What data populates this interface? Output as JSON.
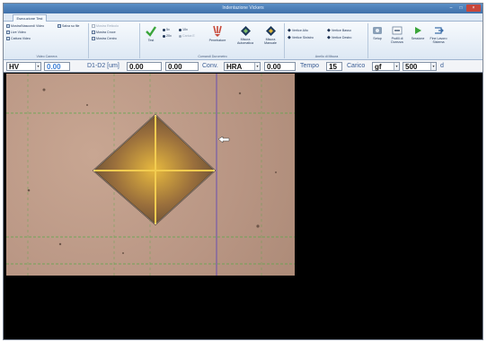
{
  "window": {
    "title": "Indentazione Vickers"
  },
  "tabs": [
    {
      "label": "Esecuzione Test",
      "active": true
    }
  ],
  "ribbon": {
    "video": {
      "label": "Video Camera",
      "items": [
        "Mostra/Nascondi Video",
        "Live Video",
        "Cattura Video",
        "Salva su file"
      ]
    },
    "display": {
      "items": [
        "Mostra Reticolo",
        "Mostra Croce",
        "Mostra Centro"
      ]
    },
    "commands": {
      "label": "Comandi Durometro",
      "test_label": "Test",
      "objectives": [
        "5x",
        "10x",
        "20x",
        "Carica E"
      ],
      "penetrator_label": "Penetratore",
      "auto_label": "Misura Automatica",
      "manual_label": "Misura Manuale"
    },
    "vertices": {
      "label": "Anello di Misura",
      "items": [
        "Vertice Alto",
        "Vertice Sinistro",
        "Vertice Basso",
        "Vertice Destro"
      ]
    },
    "tools": {
      "items": [
        "Setup",
        "Profili di Durezza",
        "Sessione",
        "Fine Lavoro Sistema"
      ]
    }
  },
  "measure_bar": {
    "scale": "HV",
    "value": "0.00",
    "d_label": "D1-D2 [um]",
    "d1": "0.00",
    "d2": "0.00",
    "conv_label": "Conv.",
    "conv_scale": "HRA",
    "conv_value": "0.00",
    "time_label": "Tempo",
    "time_value": "15",
    "load_label": "Carico",
    "load_unit": "gf",
    "load_value": "500",
    "tail": "d"
  },
  "colors": {
    "accent_blue": "#3d7fd6",
    "title_bar": "#4a7fba",
    "grid": "#5aa84a",
    "cursor_line": "#6a4fb0"
  },
  "icons": [
    "check-icon",
    "penetrator-icon",
    "auto-measure-icon",
    "manual-measure-icon",
    "setup-icon",
    "profile-icon",
    "session-play-icon",
    "exit-icon",
    "arrow-cursor-icon"
  ]
}
